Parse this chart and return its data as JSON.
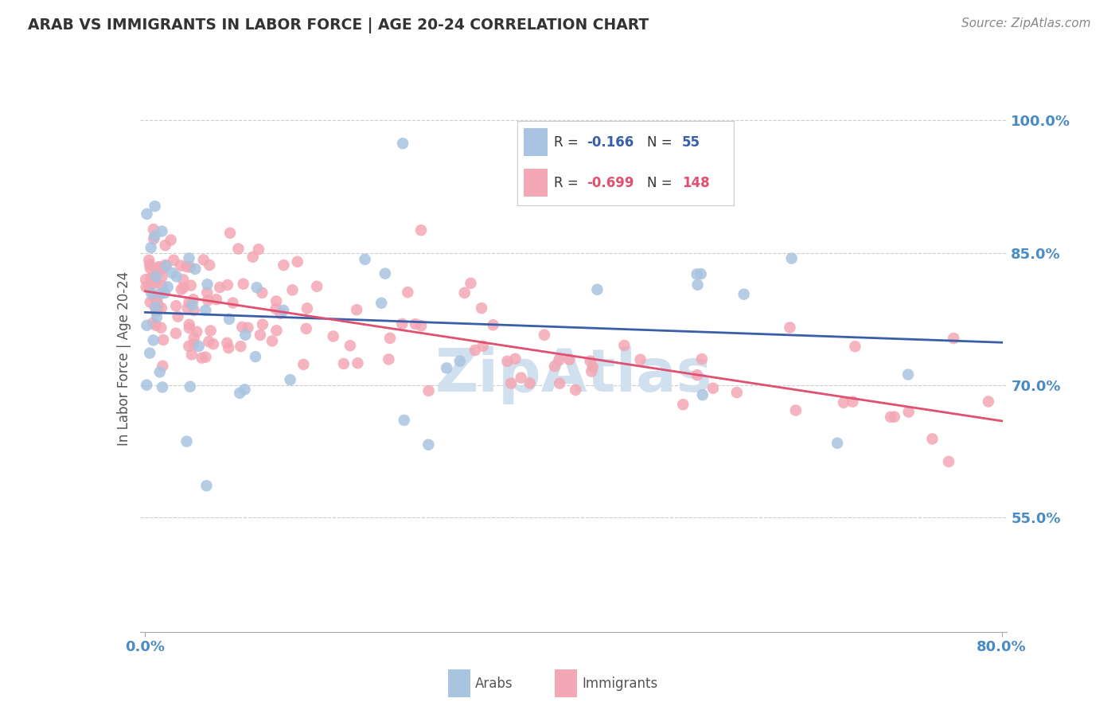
{
  "title": "ARAB VS IMMIGRANTS IN LABOR FORCE | AGE 20-24 CORRELATION CHART",
  "source": "Source: ZipAtlas.com",
  "ylabel": "In Labor Force | Age 20-24",
  "ytick_vals": [
    0.55,
    0.7,
    0.85,
    1.0
  ],
  "xlim": [
    0.0,
    0.8
  ],
  "ylim": [
    0.42,
    1.04
  ],
  "legend_arab_R": "-0.166",
  "legend_arab_N": "55",
  "legend_imm_R": "-0.699",
  "legend_imm_N": "148",
  "arab_color": "#a8c4e0",
  "arab_line_color": "#3a5fa8",
  "imm_color": "#f4a7b5",
  "imm_line_color": "#e05070",
  "title_color": "#333333",
  "source_color": "#888888",
  "axis_label_color": "#4a8bc4",
  "watermark_color": "#d0e0ef",
  "grid_color": "#cccccc",
  "bottom_border_color": "#aaaaaa"
}
